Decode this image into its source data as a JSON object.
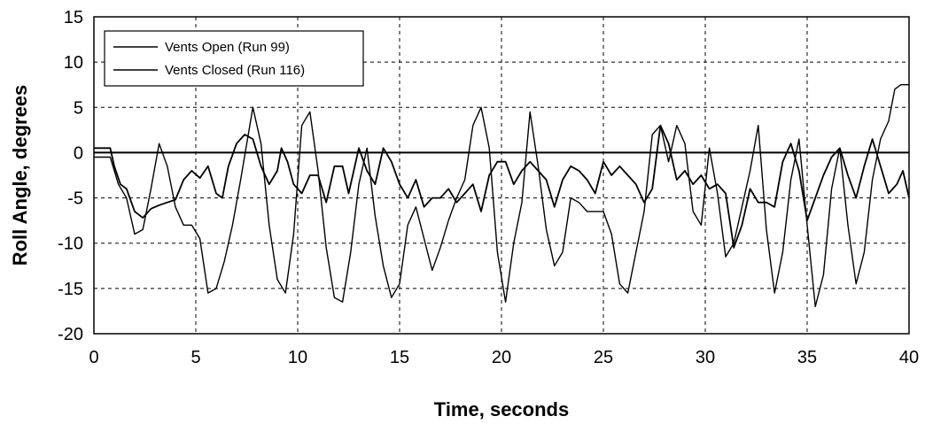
{
  "chart_data": {
    "type": "line",
    "title": "",
    "xlabel": "Time, seconds",
    "ylabel": "Roll Angle, degrees",
    "xlim": [
      0,
      40
    ],
    "ylim": [
      -20,
      15
    ],
    "x_ticks": [
      "0",
      "5",
      "10",
      "15",
      "20",
      "25",
      "30",
      "35",
      "40"
    ],
    "y_ticks": [
      "15",
      "10",
      "5",
      "0",
      "-5",
      "-10",
      "-15",
      "-20"
    ],
    "grid": true,
    "legend_position": "top-left",
    "series": [
      {
        "name": "Vents Open (Run 99)",
        "color": "#000000",
        "points": [
          [
            0,
            0.5
          ],
          [
            0.8,
            0.5
          ],
          [
            1.0,
            -1.5
          ],
          [
            1.3,
            -3.5
          ],
          [
            1.6,
            -4.0
          ],
          [
            2.0,
            -6.5
          ],
          [
            2.4,
            -7.2
          ],
          [
            2.8,
            -6.2
          ],
          [
            3.2,
            -5.8
          ],
          [
            3.6,
            -5.5
          ],
          [
            4.0,
            -5.2
          ],
          [
            4.4,
            -3.0
          ],
          [
            4.8,
            -2.0
          ],
          [
            5.2,
            -2.8
          ],
          [
            5.6,
            -1.5
          ],
          [
            6.0,
            -4.5
          ],
          [
            6.3,
            -5.0
          ],
          [
            6.6,
            -1.5
          ],
          [
            7.0,
            1.0
          ],
          [
            7.4,
            2.0
          ],
          [
            7.8,
            1.5
          ],
          [
            8.2,
            -1.5
          ],
          [
            8.6,
            -3.5
          ],
          [
            9.0,
            -2.0
          ],
          [
            9.2,
            0.5
          ],
          [
            9.5,
            -1.0
          ],
          [
            9.8,
            -3.5
          ],
          [
            10.2,
            -4.5
          ],
          [
            10.6,
            -2.5
          ],
          [
            11.0,
            -2.5
          ],
          [
            11.4,
            -5.5
          ],
          [
            11.8,
            -1.5
          ],
          [
            12.2,
            -1.5
          ],
          [
            12.5,
            -4.5
          ],
          [
            13.0,
            0.5
          ],
          [
            13.4,
            -2.0
          ],
          [
            13.8,
            -3.5
          ],
          [
            14.2,
            0.5
          ],
          [
            14.6,
            -1.0
          ],
          [
            15.0,
            -3.5
          ],
          [
            15.4,
            -5.0
          ],
          [
            15.8,
            -3.0
          ],
          [
            16.2,
            -6.0
          ],
          [
            16.6,
            -5.0
          ],
          [
            17.0,
            -5.0
          ],
          [
            17.4,
            -4.0
          ],
          [
            17.8,
            -5.5
          ],
          [
            18.2,
            -4.5
          ],
          [
            18.6,
            -3.5
          ],
          [
            19.0,
            -6.5
          ],
          [
            19.4,
            -2.5
          ],
          [
            19.8,
            -1.0
          ],
          [
            20.2,
            -1.0
          ],
          [
            20.6,
            -3.5
          ],
          [
            21.0,
            -2.0
          ],
          [
            21.4,
            -1.0
          ],
          [
            21.8,
            -2.0
          ],
          [
            22.2,
            -3.0
          ],
          [
            22.6,
            -6.0
          ],
          [
            23.0,
            -3.0
          ],
          [
            23.4,
            -1.5
          ],
          [
            23.8,
            -2.0
          ],
          [
            24.2,
            -3.0
          ],
          [
            24.6,
            -4.5
          ],
          [
            25.0,
            -1.0
          ],
          [
            25.4,
            -2.5
          ],
          [
            25.8,
            -1.5
          ],
          [
            26.2,
            -2.5
          ],
          [
            26.6,
            -3.5
          ],
          [
            27.0,
            -5.5
          ],
          [
            27.4,
            -4.0
          ],
          [
            27.8,
            3.0
          ],
          [
            28.2,
            1.0
          ],
          [
            28.6,
            -3.0
          ],
          [
            29.0,
            -2.0
          ],
          [
            29.4,
            -3.5
          ],
          [
            29.8,
            -2.5
          ],
          [
            30.2,
            -4.0
          ],
          [
            30.6,
            -3.5
          ],
          [
            31.0,
            -4.5
          ],
          [
            31.4,
            -10.5
          ],
          [
            31.8,
            -8.0
          ],
          [
            32.2,
            -4.0
          ],
          [
            32.6,
            -5.5
          ],
          [
            33.0,
            -5.5
          ],
          [
            33.4,
            -6.0
          ],
          [
            33.8,
            -1.0
          ],
          [
            34.2,
            1.0
          ],
          [
            34.6,
            -2.0
          ],
          [
            35.0,
            -7.5
          ],
          [
            35.4,
            -5.0
          ],
          [
            35.8,
            -2.5
          ],
          [
            36.2,
            -0.5
          ],
          [
            36.6,
            0.5
          ],
          [
            37.0,
            -2.5
          ],
          [
            37.4,
            -5.0
          ],
          [
            37.8,
            -1.5
          ],
          [
            38.2,
            1.5
          ],
          [
            38.6,
            -1.5
          ],
          [
            39.0,
            -4.5
          ],
          [
            39.4,
            -3.5
          ],
          [
            39.7,
            -2.0
          ],
          [
            40,
            -5.0
          ]
        ]
      },
      {
        "name": "Vents Closed (Run 116)",
        "color": "#000000",
        "points": [
          [
            0,
            -0.5
          ],
          [
            0.8,
            -0.5
          ],
          [
            1.2,
            -3.5
          ],
          [
            1.6,
            -5.0
          ],
          [
            2.0,
            -9.0
          ],
          [
            2.4,
            -8.5
          ],
          [
            2.8,
            -4.0
          ],
          [
            3.2,
            1.0
          ],
          [
            3.6,
            -1.5
          ],
          [
            4.0,
            -6.0
          ],
          [
            4.4,
            -8.0
          ],
          [
            4.8,
            -8.0
          ],
          [
            5.2,
            -9.5
          ],
          [
            5.6,
            -15.5
          ],
          [
            6.0,
            -15.0
          ],
          [
            6.4,
            -12.0
          ],
          [
            6.8,
            -8.0
          ],
          [
            7.2,
            -3.0
          ],
          [
            7.8,
            5.0
          ],
          [
            8.2,
            1.0
          ],
          [
            8.6,
            -8.0
          ],
          [
            9.0,
            -14.0
          ],
          [
            9.4,
            -15.5
          ],
          [
            9.8,
            -9.0
          ],
          [
            10.2,
            3.0
          ],
          [
            10.6,
            4.5
          ],
          [
            11.0,
            -2.0
          ],
          [
            11.4,
            -10.5
          ],
          [
            11.8,
            -16.0
          ],
          [
            12.2,
            -16.5
          ],
          [
            12.6,
            -11.0
          ],
          [
            13.0,
            -3.5
          ],
          [
            13.4,
            0.5
          ],
          [
            13.8,
            -7.0
          ],
          [
            14.2,
            -12.5
          ],
          [
            14.6,
            -16.0
          ],
          [
            15.0,
            -14.5
          ],
          [
            15.4,
            -8.0
          ],
          [
            15.8,
            -6.0
          ],
          [
            16.2,
            -9.5
          ],
          [
            16.6,
            -13.0
          ],
          [
            17.0,
            -10.5
          ],
          [
            17.4,
            -7.5
          ],
          [
            17.8,
            -5.0
          ],
          [
            18.2,
            -3.0
          ],
          [
            18.6,
            3.0
          ],
          [
            19.0,
            5.0
          ],
          [
            19.4,
            0.5
          ],
          [
            19.8,
            -11.0
          ],
          [
            20.2,
            -16.5
          ],
          [
            20.6,
            -10.0
          ],
          [
            21.0,
            -5.5
          ],
          [
            21.4,
            4.5
          ],
          [
            21.8,
            -1.5
          ],
          [
            22.2,
            -8.5
          ],
          [
            22.6,
            -12.5
          ],
          [
            23.0,
            -11.0
          ],
          [
            23.4,
            -5.0
          ],
          [
            23.8,
            -5.5
          ],
          [
            24.2,
            -6.5
          ],
          [
            24.6,
            -6.5
          ],
          [
            25.0,
            -6.5
          ],
          [
            25.4,
            -9.0
          ],
          [
            25.8,
            -14.5
          ],
          [
            26.2,
            -15.5
          ],
          [
            26.6,
            -11.0
          ],
          [
            27.0,
            -6.5
          ],
          [
            27.4,
            2.0
          ],
          [
            27.8,
            3.0
          ],
          [
            28.2,
            -1.0
          ],
          [
            28.6,
            3.0
          ],
          [
            29.0,
            1.0
          ],
          [
            29.4,
            -6.5
          ],
          [
            29.8,
            -8.0
          ],
          [
            30.2,
            0.5
          ],
          [
            30.6,
            -4.5
          ],
          [
            31.0,
            -11.5
          ],
          [
            31.4,
            -10.0
          ],
          [
            31.8,
            -6.0
          ],
          [
            32.2,
            -2.0
          ],
          [
            32.6,
            3.0
          ],
          [
            33.0,
            -8.5
          ],
          [
            33.4,
            -15.5
          ],
          [
            33.8,
            -11.0
          ],
          [
            34.2,
            -3.0
          ],
          [
            34.6,
            1.5
          ],
          [
            35.0,
            -8.0
          ],
          [
            35.4,
            -17.0
          ],
          [
            35.8,
            -13.5
          ],
          [
            36.2,
            -4.0
          ],
          [
            36.6,
            0.5
          ],
          [
            37.0,
            -8.0
          ],
          [
            37.4,
            -14.5
          ],
          [
            37.8,
            -11.0
          ],
          [
            38.2,
            -3.0
          ],
          [
            38.6,
            1.5
          ],
          [
            39.0,
            3.5
          ],
          [
            39.3,
            7.0
          ],
          [
            39.6,
            7.5
          ],
          [
            40,
            7.5
          ]
        ]
      }
    ]
  }
}
